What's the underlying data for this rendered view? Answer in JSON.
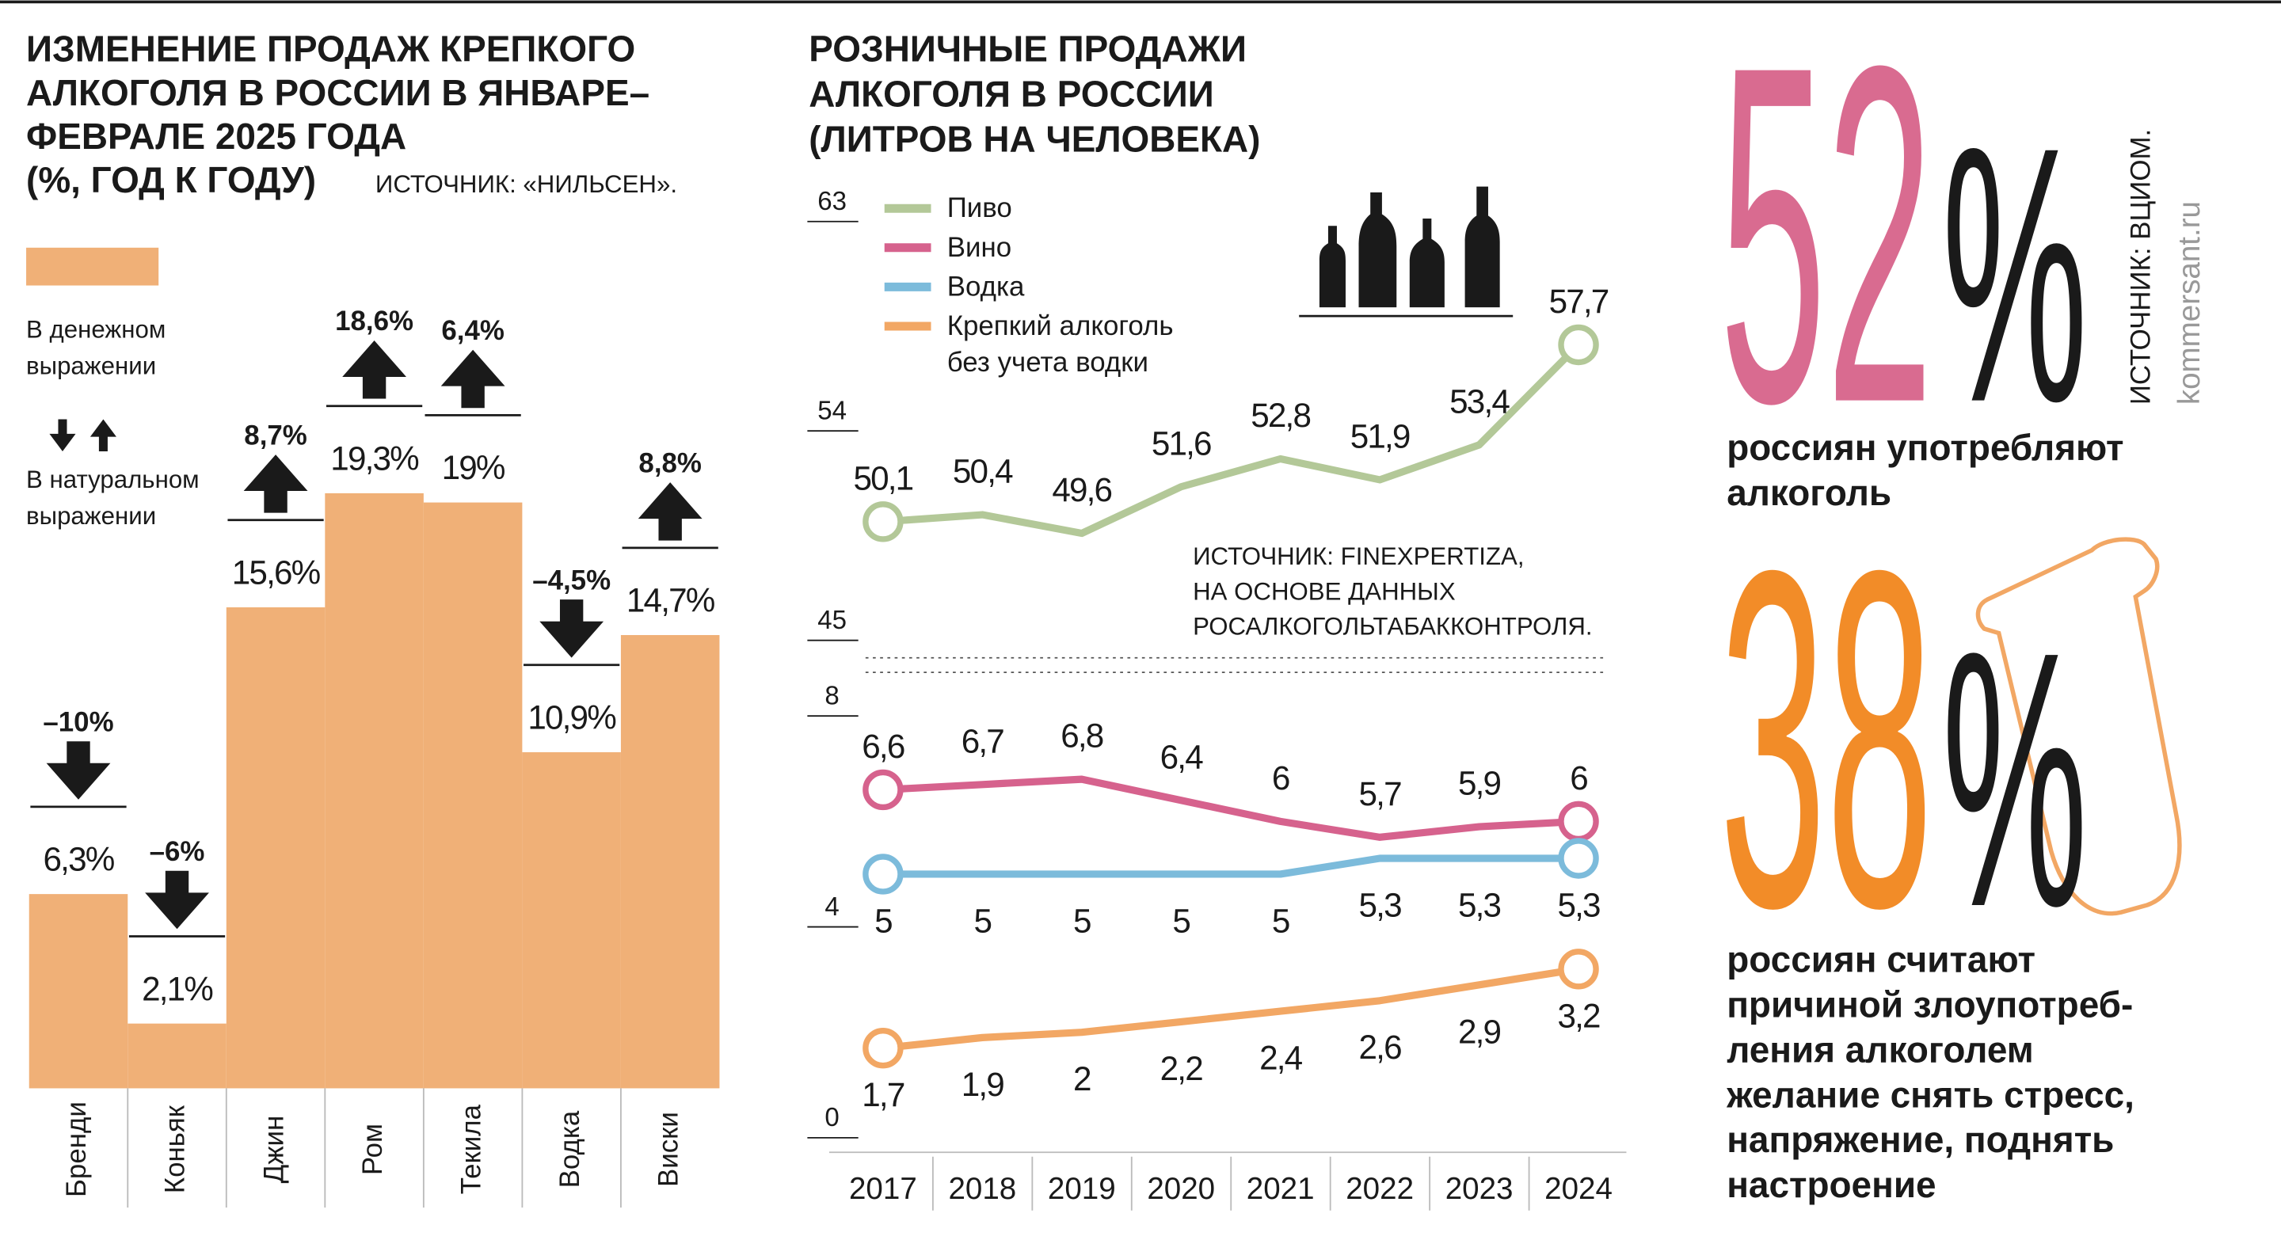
{
  "chart_data": [
    {
      "type": "bar",
      "title": [
        "ИЗМЕНЕНИЕ ПРОДАЖ КРЕПКОГО",
        "АЛКОГОЛЯ В РОССИИ В ЯНВАРЕ–",
        "ФЕВРАЛЕ 2025 ГОДА",
        "(%, ГОД К ГОДУ)"
      ],
      "source": "ИСТОЧНИК: «НИЛЬСЕН».",
      "categories": [
        "Бренди",
        "Коньяк",
        "Джин",
        "Ром",
        "Текила",
        "Водка",
        "Виски"
      ],
      "series": [
        {
          "name": "В денежном выражении",
          "color": "#f0b077",
          "values": [
            6.3,
            2.1,
            15.6,
            19.3,
            19,
            10.9,
            14.7
          ],
          "value_labels": [
            "6,3%",
            "2,1%",
            "15,6%",
            "19,3%",
            "19%",
            "10,9%",
            "14,7%"
          ]
        },
        {
          "name": "В натуральном выражении",
          "color": "#1a1a1a",
          "values": [
            -10,
            -6,
            8.7,
            18.6,
            6.4,
            -4.5,
            8.8
          ],
          "value_labels": [
            "–10%",
            "–6%",
            "8,7%",
            "18,6%",
            "6,4%",
            "–4,5%",
            "8,8%"
          ]
        }
      ]
    },
    {
      "type": "line",
      "title": [
        "РОЗНИЧНЫЕ ПРОДАЖИ",
        "АЛКОГОЛЯ В РОССИИ",
        "(ЛИТРОВ НА ЧЕЛОВЕКА)"
      ],
      "source": "ИСТОЧНИК: FINEXPERTIZA, НА ОСНОВЕ ДАННЫХ РОСАЛКОГОЛЬТАБАККОНТРОЛЯ.",
      "ylim": [
        45,
        63
      ],
      "yticks": [
        45,
        54,
        63
      ],
      "series": [
        {
          "name": "Пиво",
          "color": "#b3c898",
          "values": [
            50.1,
            50.4,
            49.6,
            51.6,
            52.8,
            51.9,
            53.4,
            57.7
          ],
          "value_labels": [
            "50,1",
            "50,4",
            "49,6",
            "51,6",
            "52,8",
            "51,9",
            "53,4",
            "57,7"
          ]
        }
      ]
    },
    {
      "type": "line",
      "categories": [
        "2017",
        "2018",
        "2019",
        "2020",
        "2021",
        "2022",
        "2023",
        "2024"
      ],
      "ylim": [
        0,
        8
      ],
      "yticks": [
        0,
        4,
        8
      ],
      "series": [
        {
          "name": "Вино",
          "color": "#d6628d",
          "values": [
            6.6,
            6.7,
            6.8,
            6.4,
            6,
            5.7,
            5.9,
            6
          ],
          "value_labels": [
            "6,6",
            "6,7",
            "6,8",
            "6,4",
            "6",
            "5,7",
            "5,9",
            "6"
          ]
        },
        {
          "name": "Водка",
          "color": "#7cbbdb",
          "values": [
            5,
            5,
            5,
            5,
            5,
            5.3,
            5.3,
            5.3
          ],
          "value_labels": [
            "5",
            "5",
            "5",
            "5",
            "5",
            "5,3",
            "5,3",
            "5,3"
          ]
        },
        {
          "name": "Крепкий алкоголь без учета водки",
          "color": "#f2a764",
          "values": [
            1.7,
            1.9,
            2,
            2.2,
            2.4,
            2.6,
            2.9,
            3.2
          ],
          "value_labels": [
            "1,7",
            "1,9",
            "2",
            "2,2",
            "2,4",
            "2,6",
            "2,9",
            "3,2"
          ]
        }
      ]
    }
  ],
  "stats": {
    "source": "ИСТОЧНИК: ВЦИОМ.",
    "site": "kommersant.ru",
    "items": [
      {
        "number": "52",
        "sign": "%",
        "color": "#d96b90",
        "lines": [
          "россиян употребляют",
          "алкоголь"
        ]
      },
      {
        "number": "38",
        "sign": "%",
        "color": "#f28c28",
        "lines": [
          "россиян считают",
          "причиной злоупотреб-",
          "ления алкоголем",
          "желание снять стресс,",
          "напряжение, поднять",
          "настроение"
        ]
      }
    ]
  }
}
